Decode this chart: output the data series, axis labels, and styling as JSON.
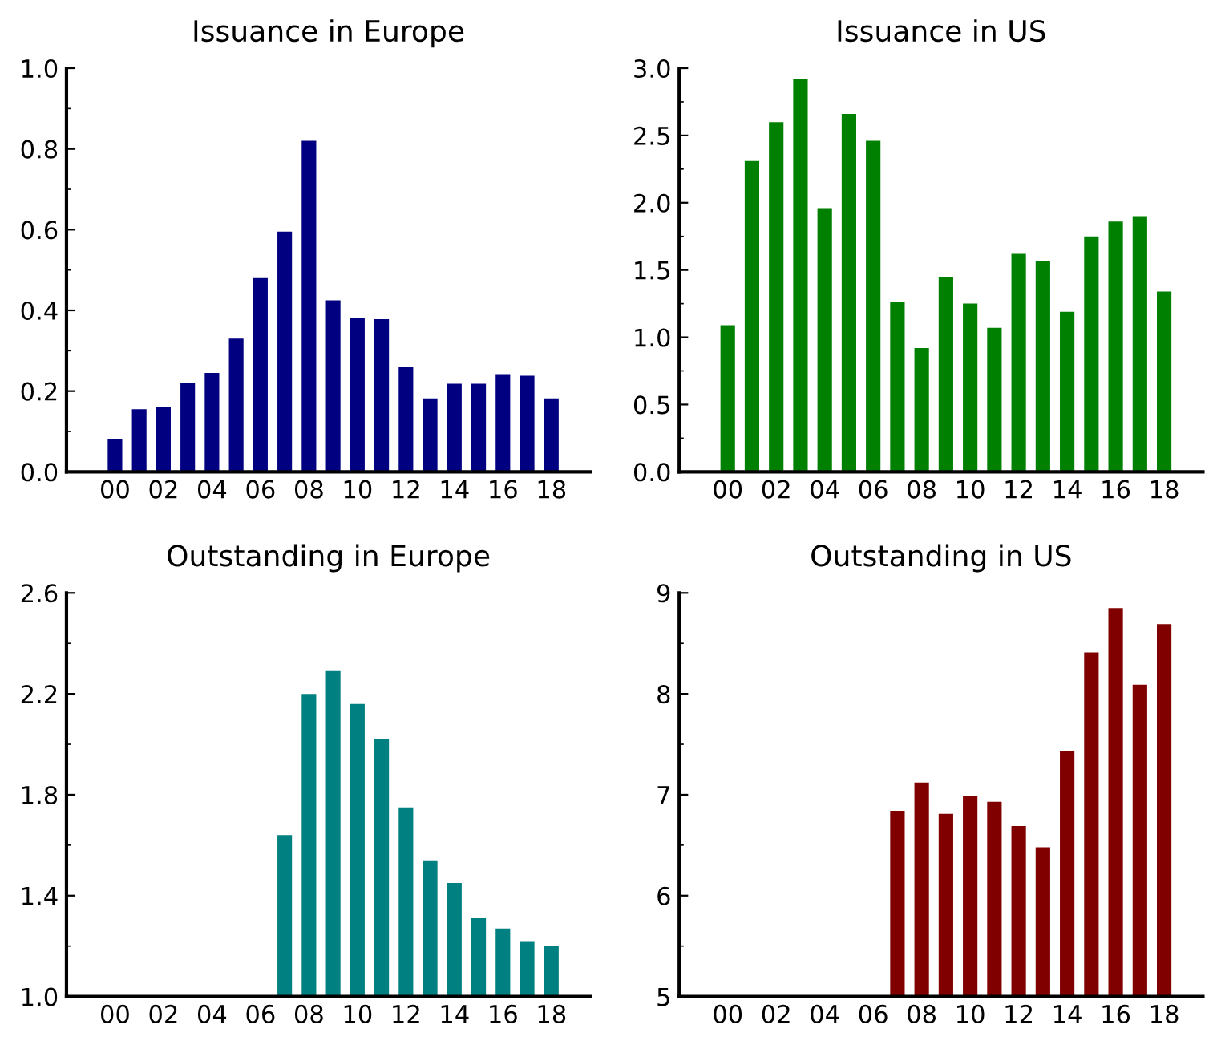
{
  "chart_data": [
    {
      "type": "bar",
      "title": "Issuance in Europe",
      "categories": [
        "00",
        null,
        "02",
        null,
        "04",
        null,
        "06",
        null,
        "08",
        null,
        "10",
        null,
        "12",
        null,
        "14",
        null,
        "16",
        null,
        "18"
      ],
      "series": [
        {
          "color": "#000080",
          "values": [
            0.08,
            0.155,
            0.16,
            0.22,
            0.245,
            0.33,
            0.48,
            0.595,
            0.82,
            0.425,
            0.38,
            0.378,
            0.26,
            0.182,
            0.218,
            0.218,
            0.242,
            0.238,
            0.182
          ]
        }
      ],
      "ylim": [
        0,
        1.0
      ],
      "yticks": [
        {
          "value": 0,
          "label": "0.0"
        },
        0.2,
        0.4,
        0.6,
        0.8,
        {
          "value": 1.0,
          "label": "1.0"
        }
      ],
      "grid": false
    },
    {
      "type": "bar",
      "title": "Issuance in US",
      "categories": [
        "00",
        null,
        "02",
        null,
        "04",
        null,
        "06",
        null,
        "08",
        null,
        "10",
        null,
        "12",
        null,
        "14",
        null,
        "16",
        null,
        "18"
      ],
      "series": [
        {
          "color": "#008000",
          "values": [
            1.09,
            2.31,
            2.6,
            2.92,
            1.96,
            2.66,
            2.46,
            1.26,
            0.92,
            1.45,
            1.25,
            1.07,
            1.62,
            1.57,
            1.19,
            1.75,
            1.86,
            1.9,
            1.34
          ]
        }
      ],
      "ylim": [
        0,
        3.0
      ],
      "yticks": [
        {
          "value": 0,
          "label": "0.0"
        },
        0.5,
        {
          "value": 1.0,
          "label": "1.0"
        },
        1.5,
        {
          "value": 2.0,
          "label": "2.0"
        },
        2.5,
        {
          "value": 3.0,
          "label": "3.0"
        }
      ],
      "grid": false
    },
    {
      "type": "bar",
      "title": "Outstanding in Europe",
      "categories": [
        "00",
        null,
        "02",
        null,
        "04",
        null,
        "06",
        null,
        "08",
        null,
        "10",
        null,
        "12",
        null,
        "14",
        null,
        "16",
        null,
        "18"
      ],
      "series": [
        {
          "color": "#008080",
          "values": [
            null,
            null,
            null,
            null,
            null,
            null,
            null,
            1.64,
            2.2,
            2.29,
            2.16,
            2.02,
            1.75,
            1.54,
            1.45,
            1.31,
            1.27,
            1.22,
            1.2
          ]
        }
      ],
      "ylim": [
        1.0,
        2.6
      ],
      "yticks": [
        {
          "value": 1.0,
          "label": "1.0"
        },
        1.4,
        1.8,
        2.2,
        2.6
      ],
      "grid": false
    },
    {
      "type": "bar",
      "title": "Outstanding in US",
      "categories": [
        "00",
        null,
        "02",
        null,
        "04",
        null,
        "06",
        null,
        "08",
        null,
        "10",
        null,
        "12",
        null,
        "14",
        null,
        "16",
        null,
        "18"
      ],
      "series": [
        {
          "color": "#800000",
          "values": [
            null,
            null,
            null,
            null,
            null,
            null,
            null,
            6.84,
            7.12,
            6.81,
            6.99,
            6.93,
            6.69,
            6.48,
            7.43,
            8.41,
            8.85,
            8.09,
            8.69
          ]
        }
      ],
      "ylim": [
        5,
        9
      ],
      "yticks": [
        5,
        6,
        7,
        8,
        9
      ],
      "grid": false
    }
  ]
}
